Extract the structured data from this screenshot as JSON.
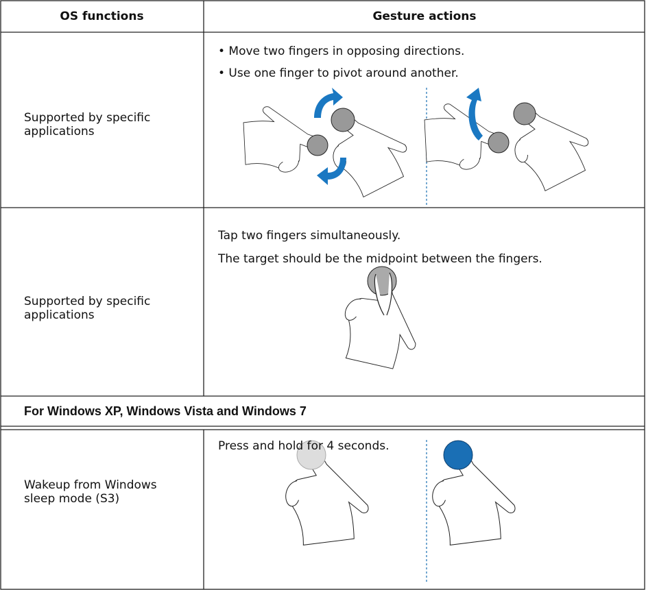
{
  "table": {
    "header": [
      "OS functions",
      "Gesture actions"
    ],
    "rows": [
      {
        "function": "Supported by specific applications",
        "actions": [
          "• Move two fingers in opposing directions.",
          "• Use one finger to pivot around another."
        ]
      },
      {
        "function": "Supported by specific applications",
        "actions": [
          "Tap two fingers simultaneously.",
          "The target should be the midpoint between the fingers."
        ]
      }
    ],
    "section": {
      "title": "For Windows XP, Windows Vista and Windows 7",
      "rows": [
        {
          "function": "Wakeup from Windows sleep mode (S3)",
          "actions": [
            "Press and hold for 4 seconds."
          ]
        }
      ]
    }
  }
}
